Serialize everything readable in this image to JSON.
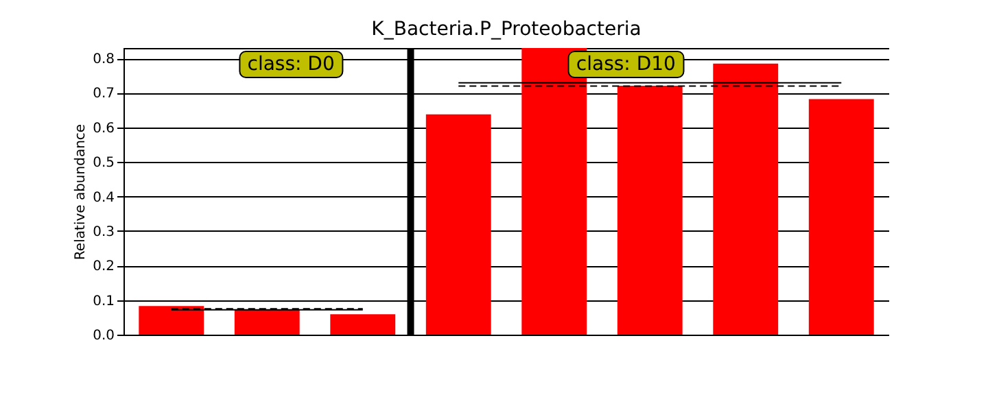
{
  "chart_data": {
    "type": "bar",
    "title": "K_Bacteria.P_Proteobacteria",
    "ylabel": "Relative abundance",
    "categories": [
      null,
      null,
      null,
      null,
      null,
      null,
      null,
      null
    ],
    "series": [
      {
        "color": "#ff0000",
        "values": [
          0.083,
          0.073,
          0.059,
          0.638,
          0.83,
          0.721,
          0.785,
          0.682
        ]
      },
      {
        "type": "line",
        "color": "#000000",
        "line_style": "solid",
        "values": [
          0.072,
          0.072,
          0.072,
          null,
          null,
          null,
          null,
          null
        ]
      },
      {
        "type": "line",
        "color": "#000000",
        "line_style": "dashed",
        "values": [
          0.075,
          0.075,
          0.075,
          null,
          null,
          null,
          null,
          null
        ]
      },
      {
        "type": "line",
        "color": "#000000",
        "line_style": "solid",
        "values": [
          null,
          null,
          null,
          0.729,
          0.729,
          0.729,
          0.729,
          0.729
        ]
      },
      {
        "type": "line",
        "color": "#000000",
        "line_style": "dashed",
        "values": [
          null,
          null,
          null,
          0.72,
          0.72,
          0.72,
          0.72,
          0.72
        ]
      }
    ],
    "ylim": [
      0,
      0.83
    ],
    "yticks": [
      {
        "value": 0,
        "label": "0.0"
      },
      0.1,
      0.2,
      0.3,
      0.4,
      0.5,
      0.6,
      0.7,
      0.8
    ],
    "annotations": [
      "class: D0",
      "class: D10"
    ],
    "grid": "y",
    "tick_labels": "y"
  }
}
